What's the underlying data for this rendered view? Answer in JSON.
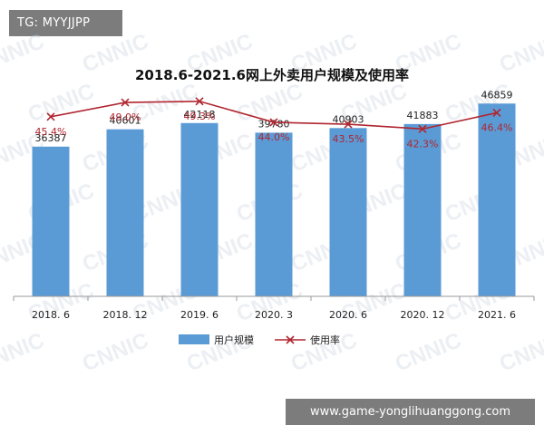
{
  "tags": {
    "tg": "TG: MYYJJPP",
    "site": "www.game-yonglihuanggong.com"
  },
  "watermark": "CNNIC",
  "colors": {
    "bar": "#5b9bd5",
    "line": "#b0252f",
    "axis": "#9a9a9a"
  },
  "chart_data": {
    "type": "bar",
    "title": "2018.6-2021.6网上外卖用户规模及使用率",
    "categories": [
      "2018. 6",
      "2018. 12",
      "2019. 6",
      "2020. 3",
      "2020. 6",
      "2020. 12",
      "2021. 6"
    ],
    "series": [
      {
        "name": "用户规模",
        "type": "bar",
        "values": [
          36387,
          40601,
          42118,
          39780,
          40903,
          41883,
          46859
        ],
        "labels": [
          "36387",
          "40601",
          "42118",
          "39780",
          "40903",
          "41883",
          "46859"
        ],
        "color": "#5b9bd5"
      },
      {
        "name": "使用率",
        "type": "line",
        "values": [
          45.4,
          49.0,
          49.3,
          44.0,
          43.5,
          42.3,
          46.4
        ],
        "labels": [
          "45.4%",
          "49.0%",
          "49.3%",
          "44.0%",
          "43.5%",
          "42.3%",
          "46.4%"
        ],
        "color": "#b0252f",
        "marker": "x"
      }
    ],
    "bar_ylim": [
      0,
      50000
    ],
    "line_ylim": [
      0,
      52
    ],
    "legend_position": "bottom",
    "grid": false
  }
}
